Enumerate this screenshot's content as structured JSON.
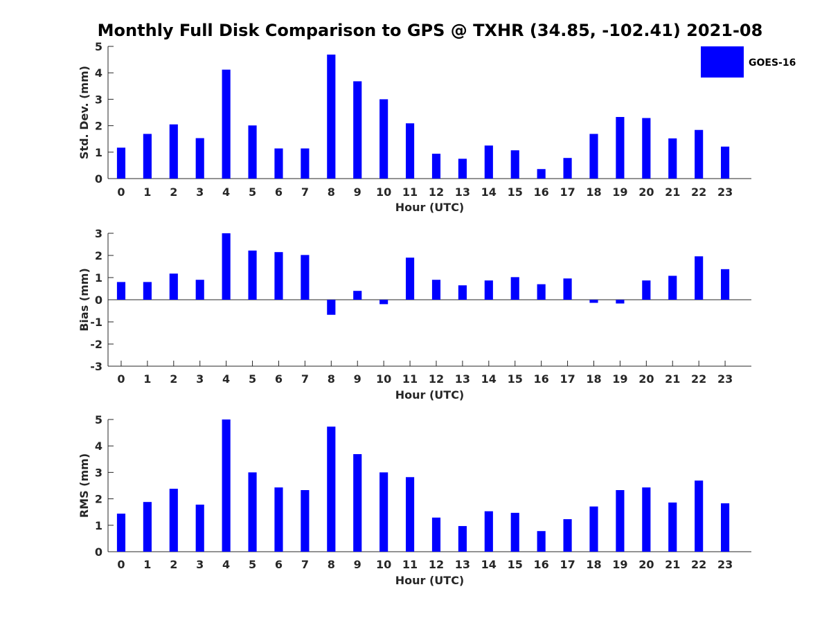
{
  "figure": {
    "title": "Monthly Full Disk Comparison to GPS @ TXHR (34.85, -102.41) 2021-08"
  },
  "legend": {
    "label": "GOES-16",
    "color": "#0000ff"
  },
  "chart_data": [
    {
      "type": "bar",
      "title": "Monthly Full Disk Comparison to GPS @ TXHR (34.85, -102.41) 2021-08",
      "xlabel": "Hour (UTC)",
      "ylabel": "Std. Dev. (mm)",
      "categories": [
        "0",
        "1",
        "2",
        "3",
        "4",
        "5",
        "6",
        "7",
        "8",
        "9",
        "10",
        "11",
        "12",
        "13",
        "14",
        "15",
        "16",
        "17",
        "18",
        "19",
        "20",
        "21",
        "22",
        "23"
      ],
      "series": [
        {
          "name": "GOES-16",
          "color": "#0000ff",
          "values": [
            1.17,
            1.69,
            2.05,
            1.53,
            4.12,
            2.01,
            1.14,
            1.14,
            4.69,
            3.68,
            3.0,
            2.09,
            0.94,
            0.75,
            1.25,
            1.07,
            0.36,
            0.78,
            1.69,
            2.33,
            2.29,
            1.52,
            1.84,
            1.21
          ]
        }
      ],
      "ylim": [
        0,
        5
      ],
      "yticks": [
        0,
        1,
        2,
        3,
        4,
        5
      ],
      "grid": false,
      "legend_position": "top-right"
    },
    {
      "type": "bar",
      "xlabel": "Hour (UTC)",
      "ylabel": "Bias (mm)",
      "categories": [
        "0",
        "1",
        "2",
        "3",
        "4",
        "5",
        "6",
        "7",
        "8",
        "9",
        "10",
        "11",
        "12",
        "13",
        "14",
        "15",
        "16",
        "17",
        "18",
        "19",
        "20",
        "21",
        "22",
        "23"
      ],
      "series": [
        {
          "name": "GOES-16",
          "color": "#0000ff",
          "values": [
            0.8,
            0.8,
            1.18,
            0.9,
            3.0,
            2.22,
            2.15,
            2.02,
            -0.68,
            0.4,
            -0.2,
            1.9,
            0.9,
            0.65,
            0.87,
            1.02,
            0.7,
            0.96,
            -0.14,
            -0.17,
            0.87,
            1.08,
            1.96,
            1.38
          ]
        }
      ],
      "ylim": [
        -3,
        3
      ],
      "yticks": [
        -3,
        -2,
        -1,
        0,
        1,
        2,
        3
      ],
      "grid": false
    },
    {
      "type": "bar",
      "xlabel": "Hour (UTC)",
      "ylabel": "RMS (mm)",
      "categories": [
        "0",
        "1",
        "2",
        "3",
        "4",
        "5",
        "6",
        "7",
        "8",
        "9",
        "10",
        "11",
        "12",
        "13",
        "14",
        "15",
        "16",
        "17",
        "18",
        "19",
        "20",
        "21",
        "22",
        "23"
      ],
      "series": [
        {
          "name": "GOES-16",
          "color": "#0000ff",
          "values": [
            1.44,
            1.88,
            2.38,
            1.78,
            5.0,
            3.0,
            2.43,
            2.33,
            4.73,
            3.69,
            3.0,
            2.82,
            1.29,
            0.97,
            1.53,
            1.47,
            0.78,
            1.23,
            1.71,
            2.33,
            2.43,
            1.86,
            2.69,
            1.83
          ]
        }
      ],
      "ylim": [
        0,
        5
      ],
      "yticks": [
        0,
        1,
        2,
        3,
        4,
        5
      ],
      "grid": false
    }
  ]
}
